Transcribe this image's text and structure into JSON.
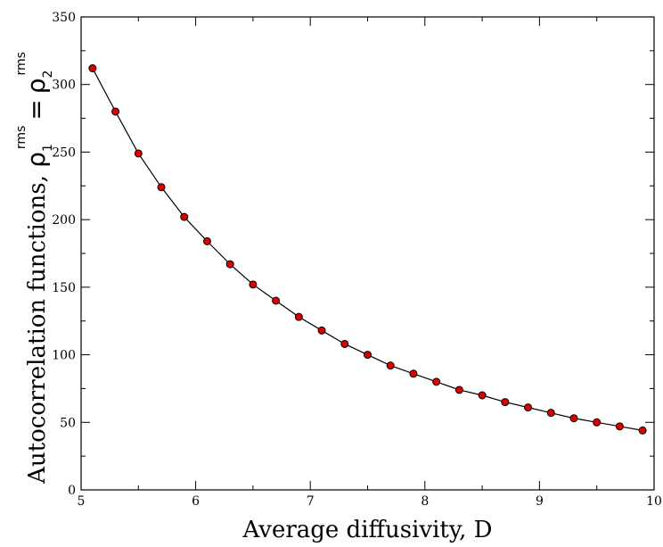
{
  "chart_data": {
    "type": "line",
    "xlabel": "Average diffusivity, D",
    "ylabel": {
      "text": "Autocorrelation functions, ",
      "rho": "ρ",
      "sub1": "1",
      "sub2": "2",
      "sup": "rms",
      "equals": "="
    },
    "xlim": [
      5,
      10
    ],
    "ylim": [
      0,
      350
    ],
    "xticks": [
      5,
      6,
      7,
      8,
      9,
      10
    ],
    "yticks": [
      0,
      50,
      100,
      150,
      200,
      250,
      300,
      350
    ],
    "grid": false,
    "legend": "none",
    "series": [
      {
        "line_color": "#000000",
        "marker_color": "#dd0000",
        "marker_edge": "#000000",
        "x": [
          5.1,
          5.3,
          5.5,
          5.7,
          5.9,
          6.1,
          6.3,
          6.5,
          6.7,
          6.9,
          7.1,
          7.3,
          7.5,
          7.7,
          7.9,
          8.1,
          8.3,
          8.5,
          8.7,
          8.9,
          9.1,
          9.3,
          9.5,
          9.7,
          9.9
        ],
        "y": [
          312,
          280,
          249,
          224,
          202,
          184,
          167,
          152,
          140,
          128,
          118,
          108,
          100,
          92,
          86,
          80,
          74,
          70,
          65,
          61,
          57,
          53,
          50,
          47,
          44
        ]
      }
    ]
  }
}
